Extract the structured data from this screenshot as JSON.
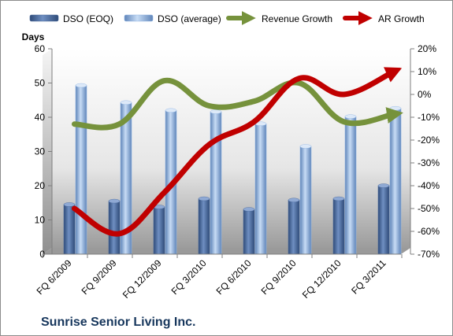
{
  "chart_data": {
    "type": "bar",
    "title": "Sunrise Senior Living Inc.",
    "ylabel_left": "Days",
    "categories": [
      "FQ 6/2009",
      "FQ 9/2009",
      "FQ 12/2009",
      "FQ 3/2010",
      "FQ 6/2010",
      "FQ 9/2010",
      "FQ 12/2010",
      "FQ 3/2011"
    ],
    "ylim_left": [
      0,
      60
    ],
    "ylim_right": [
      -70,
      20
    ],
    "left_ticks": [
      "0",
      "10",
      "20",
      "30",
      "40",
      "50",
      "60"
    ],
    "right_ticks": [
      "-70%",
      "-60%",
      "-50%",
      "-40%",
      "-30%",
      "-20%",
      "-10%",
      "0%",
      "10%",
      "20%"
    ],
    "legend_position": "top",
    "grid": false,
    "series": [
      {
        "name": "DSO (EOQ)",
        "kind": "bar",
        "axis": "left",
        "color": "#4a6a9c",
        "values": [
          14.5,
          15.5,
          13.8,
          16.2,
          13.1,
          15.8,
          16.2,
          20.0
        ]
      },
      {
        "name": "DSO (average)",
        "kind": "bar",
        "axis": "left",
        "color": "#8fb4e3",
        "values": [
          49.3,
          44.3,
          42.0,
          41.6,
          38.1,
          31.5,
          40.2,
          42.6
        ]
      },
      {
        "name": "Revenue Growth",
        "kind": "line",
        "axis": "right",
        "color": "#76923c",
        "values": [
          -13,
          -13,
          6,
          -5,
          -3,
          5,
          -12,
          -9
        ]
      },
      {
        "name": "AR Growth",
        "kind": "line",
        "axis": "right",
        "color": "#c00000",
        "values": [
          -50,
          -61,
          -43,
          -22,
          -12,
          7,
          0,
          9
        ]
      }
    ]
  }
}
